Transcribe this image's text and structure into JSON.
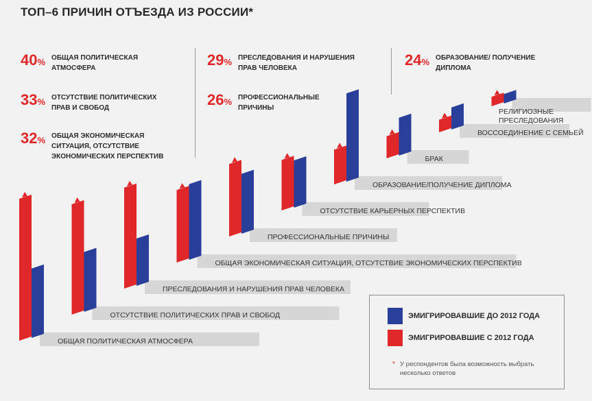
{
  "title": "ТОП–6 ПРИЧИН ОТЪЕЗДА ИЗ РОССИИ*",
  "top6": [
    {
      "pct": "40",
      "unit": "%",
      "label": "ОБЩАЯ ПОЛИТИЧЕСКАЯ АТМОСФЕРА"
    },
    {
      "pct": "33",
      "unit": "%",
      "label": "ОТСУТСТВИЕ ПОЛИТИЧЕСКИХ ПРАВ И СВОБОД"
    },
    {
      "pct": "32",
      "unit": "%",
      "label": "ОБЩАЯ ЭКОНОМИЧЕСКАЯ СИТУАЦИЯ, ОТСУТСТВИЕ ЭКОНОМИЧЕСКИХ ПЕРСПЕКТИВ"
    },
    {
      "pct": "29",
      "unit": "%",
      "label": "ПРЕСЛЕДОВАНИЯ И НАРУШЕНИЯ ПРАВ ЧЕЛОВЕКА"
    },
    {
      "pct": "26",
      "unit": "%",
      "label": "ПРОФЕССИОНАЛЬНЫЕ ПРИЧИНЫ"
    },
    {
      "pct": "24",
      "unit": "%",
      "label": "ОБРАЗОВАНИЕ/ ПОЛУЧЕНИЕ ДИПЛОМА"
    }
  ],
  "legend": {
    "before": "ЭМИГРИРОВАВШИЕ ДО 2012 ГОДА",
    "after": "ЭМИГРИРОВАВШИЕ С 2012 ГОДА",
    "note_star": "*",
    "note": "У респондентов была возможность выбрать несколько ответов"
  },
  "colors": {
    "before": "#2a3f9a",
    "after": "#e0282a",
    "shadow": "#d6d6d6",
    "arrow": "#e0282a"
  },
  "chart_data": {
    "type": "bar",
    "title": "ТОП–6 ПРИЧИН ОТЪЕЗДА ИЗ РОССИИ*",
    "categories": [
      "ОБЩАЯ ПОЛИТИЧЕСКАЯ АТМОСФЕРА",
      "ОТСУТСТВИЕ ПОЛИТИЧЕСКИХ ПРАВ И СВОБОД",
      "ПРЕСЛЕДОВАНИЯ И НАРУШЕНИЯ ПРАВ ЧЕЛОВЕКА",
      "ОБЩАЯ ЭКОНОМИЧЕСКАЯ СИТУАЦИЯ, ОТСУТСТВИЕ ЭКОНОМИЧЕСКИХ ПЕРСПЕКТИВ",
      "ПРОФЕССИОНАЛЬНЫЕ ПРИЧИНЫ",
      "ОТСУТСТВИЕ КАРЬЕРНЫХ ПЕРСПЕКТИВ",
      "ОБРАЗОВАНИЕ/ПОЛУЧЕНИЕ ДИПЛОМА",
      "БРАК",
      "ВОССОЕДИНЕНИЕ С СЕМЬЕЙ",
      "РЕЛИГИОЗНЫЕ ПРЕСЛЕДОВАНИЯ"
    ],
    "series": [
      {
        "name": "ЭМИГРИРОВАВШИЕ ДО 2012 ГОДА",
        "color": "#2a3f9a",
        "values": [
          22,
          19,
          15,
          24,
          19,
          15,
          28,
          12,
          7,
          3
        ]
      },
      {
        "name": "ЭМИГРИРОВАВШИЕ С 2012 ГОДА",
        "color": "#e0282a",
        "values": [
          45,
          35,
          32,
          23,
          23,
          16,
          11,
          7,
          4,
          3
        ]
      }
    ],
    "xlabel": "",
    "ylabel": "%",
    "ylim": [
      0,
      50
    ]
  }
}
